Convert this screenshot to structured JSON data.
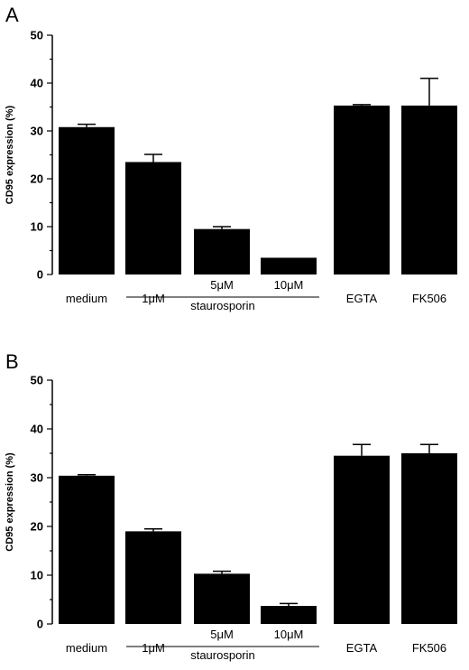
{
  "chart_data": [
    {
      "panel": "A",
      "type": "bar",
      "ylabel": "CD95 expression (%)",
      "ylim": [
        0,
        50
      ],
      "yticks": [
        "0",
        "10",
        "20",
        "30",
        "40",
        "50"
      ],
      "categories": [
        "medium",
        "1μM",
        "5μM",
        "10μM",
        "EGTA",
        "FK506"
      ],
      "values": [
        30.8,
        23.5,
        9.5,
        3.5,
        35.3,
        35.3
      ],
      "errors": [
        0.6,
        1.6,
        0.5,
        0.0,
        0.2,
        5.7
      ],
      "group_label": "staurosporin",
      "grid": false
    },
    {
      "panel": "B",
      "type": "bar",
      "ylabel": "CD95 expression (%)",
      "ylim": [
        0,
        50
      ],
      "yticks": [
        "0",
        "10",
        "20",
        "30",
        "40",
        "50"
      ],
      "categories": [
        "medium",
        "1μM",
        "5μM",
        "10μM",
        "EGTA",
        "FK506"
      ],
      "values": [
        30.4,
        19.0,
        10.3,
        3.7,
        34.5,
        35.0
      ],
      "errors": [
        0.2,
        0.5,
        0.5,
        0.5,
        2.3,
        1.8
      ],
      "group_label": "staurosporin",
      "grid": false
    }
  ]
}
